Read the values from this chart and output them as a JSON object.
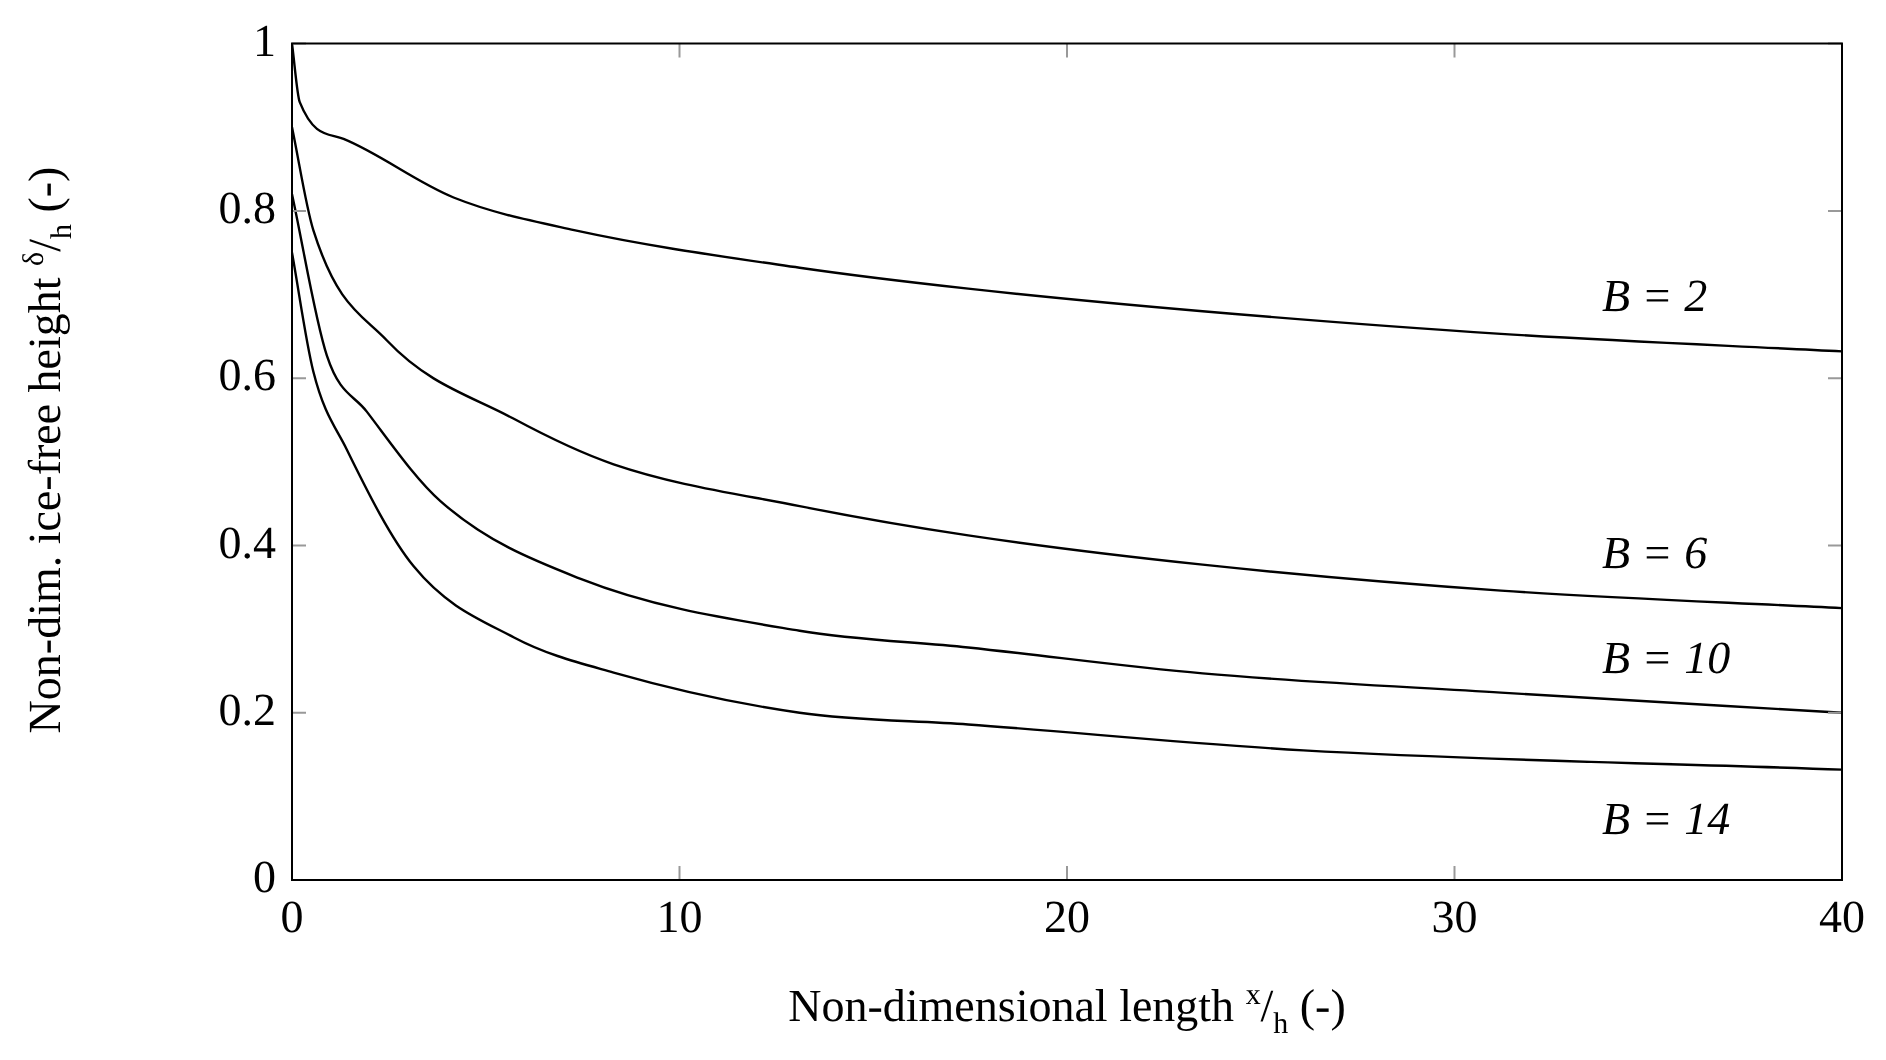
{
  "chart_data": {
    "type": "line",
    "xlabel": "Non-dimensional length $^{x}$/$_{h}$ (-)",
    "ylabel": "Non-dim. ice-free height $^{δ}$/$_{h}$ (-)",
    "xlim": [
      0,
      40
    ],
    "xticks": [
      0,
      10,
      20,
      30,
      40
    ],
    "ylim": [
      0,
      1
    ],
    "yticks": [
      0,
      0.2,
      0.4,
      0.6,
      0.8,
      1
    ],
    "grid": false,
    "legend": false,
    "marker": "none",
    "line_style": "solid",
    "series": [
      {
        "name": "B = 2",
        "color": "#000000",
        "x": [
          0,
          0.2,
          1.33,
          4.17,
          7.28,
          13.1,
          17.45,
          23.5,
          31.2,
          40
        ],
        "values": [
          1,
          0.93,
          0.886,
          0.816,
          0.777,
          0.732,
          0.707,
          0.68,
          0.653,
          0.632
        ]
      },
      {
        "name": "B = 6",
        "color": "#000000",
        "x": [
          0,
          0.55,
          2.45,
          5.7,
          8.3,
          13.1,
          17.45,
          23.5,
          31.2,
          40
        ],
        "values": [
          0.9,
          0.777,
          0.645,
          0.552,
          0.497,
          0.447,
          0.412,
          0.377,
          0.346,
          0.325
        ]
      },
      {
        "name": "B = 10",
        "color": "#000000",
        "x": [
          0,
          0.9,
          1.93,
          3.83,
          7.45,
          13.1,
          17.45,
          23.5,
          31.2,
          40
        ],
        "values": [
          0.82,
          0.627,
          0.56,
          0.453,
          0.36,
          0.298,
          0.278,
          0.247,
          0.224,
          0.2
        ]
      },
      {
        "name": "B = 14",
        "color": "#000000",
        "x": [
          0,
          0.55,
          1.41,
          3.14,
          5.73,
          8.3,
          13.1,
          17.45,
          26.1,
          40
        ],
        "values": [
          0.75,
          0.608,
          0.515,
          0.375,
          0.29,
          0.248,
          0.2,
          0.186,
          0.155,
          0.132
        ]
      }
    ]
  }
}
